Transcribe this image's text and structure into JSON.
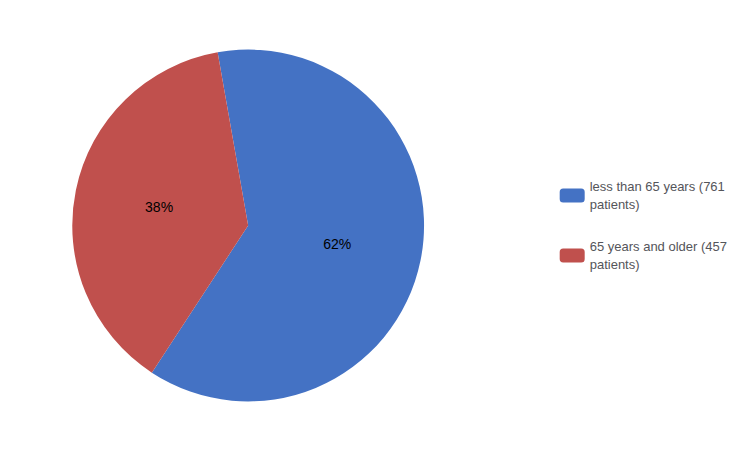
{
  "chart_data": {
    "type": "pie",
    "categories": [
      "less than 65 years (761\npatients)",
      "65 years and older (457\npatients)"
    ],
    "values": [
      62,
      38
    ],
    "value_labels": [
      "62%",
      "38%"
    ],
    "colors": [
      "#4472C4",
      "#C0504D"
    ],
    "data_labels": true,
    "legend": "right"
  }
}
